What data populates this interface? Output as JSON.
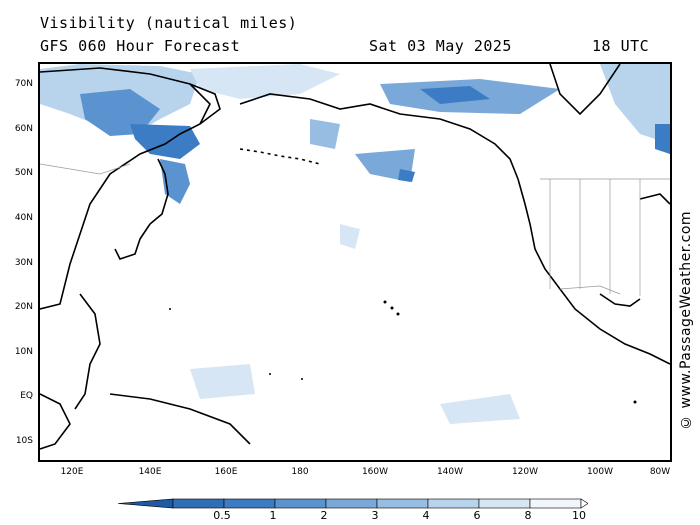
{
  "header": {
    "title": "Visibility (nautical miles)",
    "model": "GFS 060 Hour Forecast",
    "date": "Sat 03 May 2025",
    "time": "18 UTC"
  },
  "credit": "© www.PassageWeather.com",
  "lat_labels": [
    "70N",
    "60N",
    "50N",
    "40N",
    "30N",
    "20N",
    "10N",
    "EQ",
    "10S"
  ],
  "lon_labels": [
    "120E",
    "140E",
    "160E",
    "180",
    "160W",
    "140W",
    "120W",
    "100W",
    "80W"
  ],
  "legend": {
    "values": [
      "0.5",
      "1",
      "2",
      "3",
      "4",
      "6",
      "8",
      "10"
    ],
    "colors": [
      "#2e6fb7",
      "#3c7cc4",
      "#5a93cf",
      "#79a8d9",
      "#98bde3",
      "#b8d3ec",
      "#d6e6f4",
      "#f0f6fb"
    ]
  },
  "colors": {
    "low_visibility": "#3c7cc4",
    "moderate_visibility": "#79a8d9",
    "light_visibility": "#b8d3ec",
    "coastline": "#000000",
    "borders": "#9a9a9a"
  }
}
